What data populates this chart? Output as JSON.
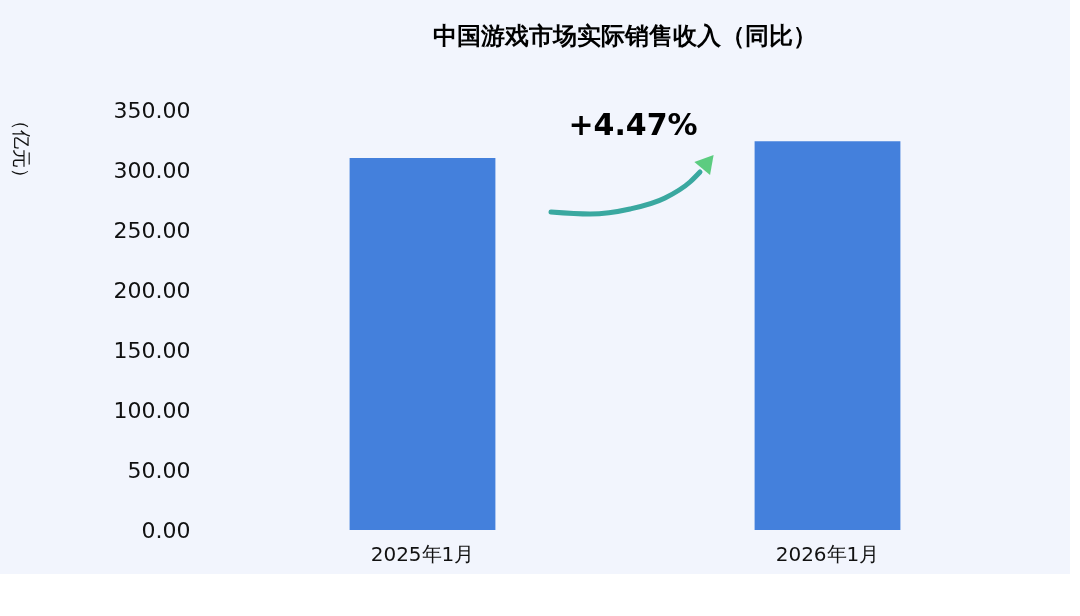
{
  "chart_data": {
    "type": "bar",
    "title": "中国游戏市场实际销售收入（同比）",
    "ylabel": "（亿元）",
    "categories": [
      "2025年1月",
      "2026年1月"
    ],
    "values": [
      310,
      324
    ],
    "color": "#4480dc",
    "ylim": [
      0,
      350
    ],
    "yticks": [
      {
        "value": 0,
        "label": "0.00"
      },
      {
        "value": 50,
        "label": "50.00"
      },
      {
        "value": 100,
        "label": "100.00"
      },
      {
        "value": 150,
        "label": "150.00"
      },
      {
        "value": 200,
        "label": "200.00"
      },
      {
        "value": 250,
        "label": "250.00"
      },
      {
        "value": 300,
        "label": "300.00"
      },
      {
        "value": 350,
        "label": "350.00"
      }
    ],
    "annotations": [
      "+4.47%"
    ],
    "grid": false
  }
}
